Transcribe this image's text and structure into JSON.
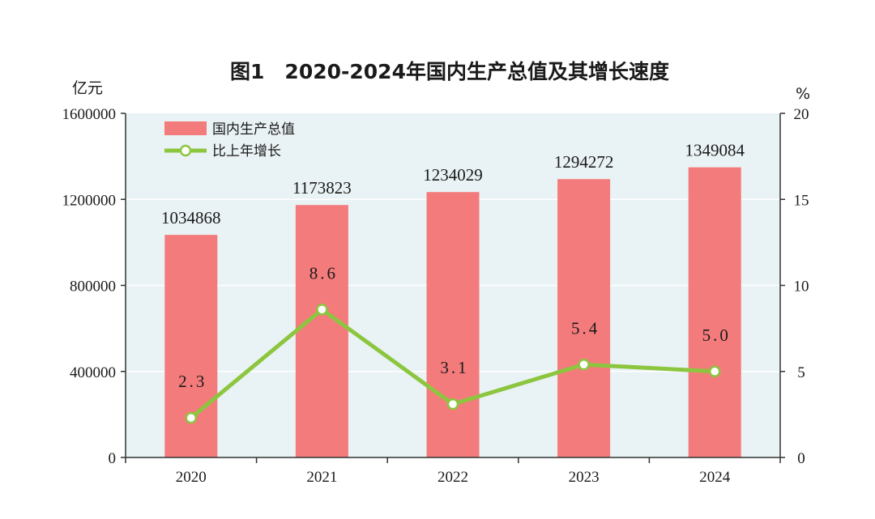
{
  "chart_data": {
    "type": "bar",
    "title": "图1　2020-2024年国内生产总值及其增长速度",
    "categories": [
      "2020",
      "2021",
      "2022",
      "2023",
      "2024"
    ],
    "y_left": {
      "unit": "亿元",
      "range": [
        0,
        1600000
      ],
      "ticks": [
        "0",
        "400000",
        "800000",
        "1200000",
        "1600000"
      ],
      "tick_values": [
        0,
        400000,
        800000,
        1200000,
        1600000
      ]
    },
    "y_right": {
      "unit": "%",
      "range": [
        0,
        20
      ],
      "ticks": [
        "0",
        "5",
        "10",
        "15",
        "20"
      ],
      "tick_values": [
        0,
        5,
        10,
        15,
        20
      ]
    },
    "series": [
      {
        "name": "国内生产总值",
        "kind": "bar",
        "axis": "left",
        "color": "#f47b7b",
        "values": [
          1034868,
          1173823,
          1234029,
          1294272,
          1349084
        ],
        "labels": [
          "1034868",
          "1173823",
          "1234029",
          "1294272",
          "1349084"
        ]
      },
      {
        "name": "比上年增长",
        "kind": "line",
        "axis": "right",
        "color": "#8cc63f",
        "values": [
          2.3,
          8.6,
          3.1,
          5.4,
          5.0
        ],
        "labels": [
          "2.3",
          "8.6",
          "3.1",
          "5.4",
          "5.0"
        ]
      }
    ],
    "legend_position": "top-left",
    "grid": true,
    "plot_background": "#e9f2f4",
    "grid_color": "#ffffff"
  }
}
